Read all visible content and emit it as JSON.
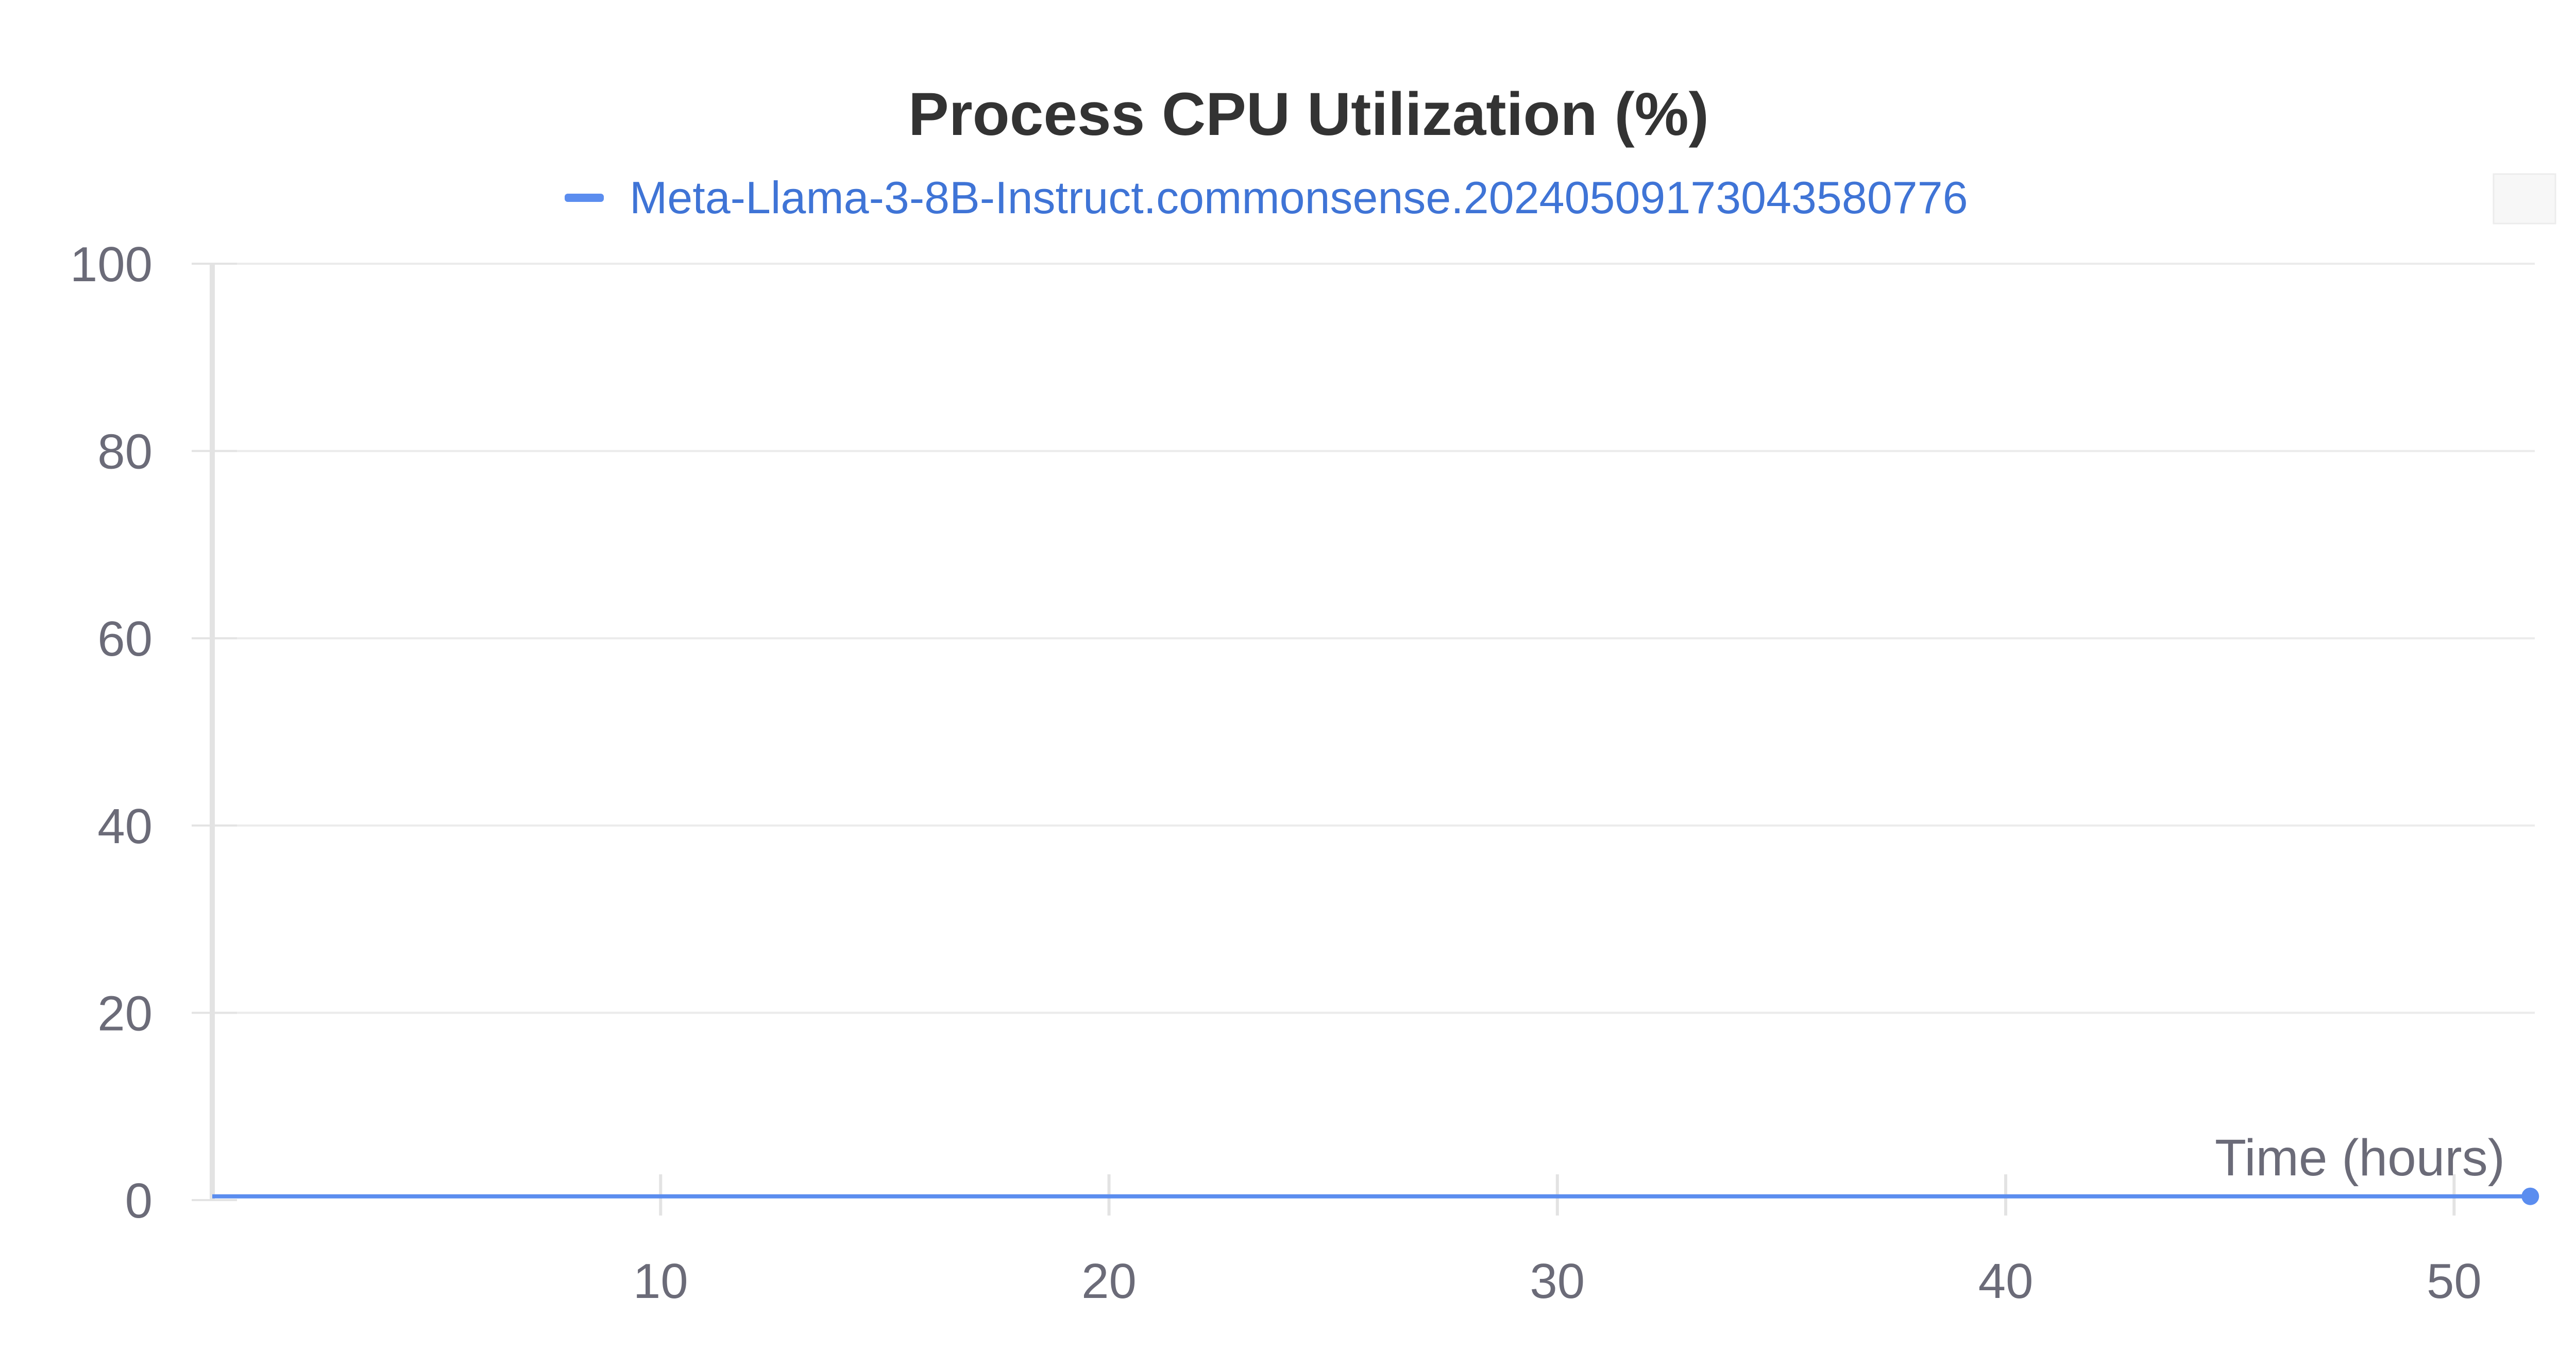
{
  "chart_data": {
    "type": "line",
    "title": "Process CPU Utilization (%)",
    "xlabel": "Time (hours)",
    "ylabel": "",
    "xlim": [
      0,
      51.8
    ],
    "ylim": [
      0,
      100
    ],
    "x_ticks": [
      10,
      20,
      30,
      40,
      50
    ],
    "y_ticks": [
      0,
      20,
      40,
      60,
      80,
      100
    ],
    "grid": "horizontal",
    "legend_position": "top-center",
    "series": [
      {
        "name": "Meta-Llama-3-8B-Instruct.commonsense.20240509173043580776",
        "color": "#5b8def",
        "x": [
          0,
          10,
          20,
          30,
          40,
          50,
          51.7
        ],
        "y": [
          0.4,
          0.4,
          0.4,
          0.4,
          0.4,
          0.4,
          0.4
        ]
      }
    ]
  }
}
